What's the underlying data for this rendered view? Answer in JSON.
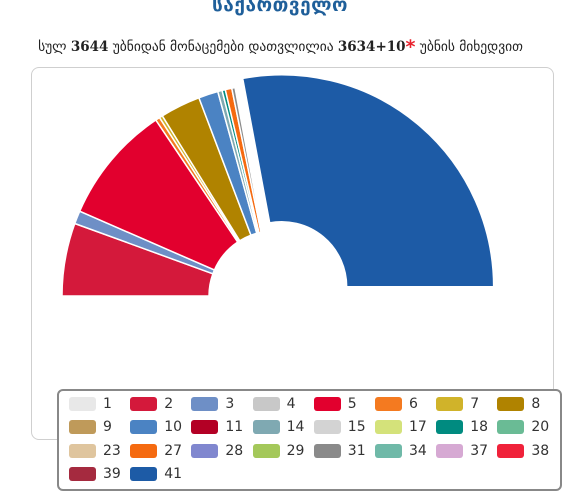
{
  "header": {
    "title": "საქართველო",
    "subtitle_prefix": "სულ",
    "subtitle_total": "3644",
    "subtitle_mid": "უბნიდან მონაცემები დათვლილია",
    "subtitle_counted": "3634+10",
    "subtitle_star": "*",
    "subtitle_suffix": "უბნის მიხედვით"
  },
  "chart_data": {
    "type": "pie",
    "variant": "semi-donut (parliament)",
    "categories": [
      "2",
      "3",
      "5",
      "6",
      "7",
      "8",
      "10",
      "14",
      "18",
      "27",
      "31",
      "41"
    ],
    "values": [
      6.7,
      1.2,
      10.9,
      0.4,
      0.3,
      3.7,
      1.8,
      0.4,
      0.3,
      0.6,
      0.3,
      33.7
    ],
    "exploded": [
      "41"
    ]
  },
  "legend": {
    "items": [
      {
        "label": "1",
        "color": "#e8e8e8"
      },
      {
        "label": "2",
        "color": "#d4193b"
      },
      {
        "label": "3",
        "color": "#6e8fc6"
      },
      {
        "label": "4",
        "color": "#c8c8c8"
      },
      {
        "label": "5",
        "color": "#e2002e"
      },
      {
        "label": "6",
        "color": "#f47a20"
      },
      {
        "label": "7",
        "color": "#d0b32a"
      },
      {
        "label": "8",
        "color": "#b08300"
      },
      {
        "label": "9",
        "color": "#bf9a5a"
      },
      {
        "label": "10",
        "color": "#4b83c3"
      },
      {
        "label": "11",
        "color": "#b30025"
      },
      {
        "label": "14",
        "color": "#7fa9b2"
      },
      {
        "label": "15",
        "color": "#d3d3d3"
      },
      {
        "label": "17",
        "color": "#d4e27a"
      },
      {
        "label": "18",
        "color": "#008b80"
      },
      {
        "label": "20",
        "color": "#6abb95"
      },
      {
        "label": "23",
        "color": "#dfc59e"
      },
      {
        "label": "27",
        "color": "#f56a10"
      },
      {
        "label": "28",
        "color": "#8087cf"
      },
      {
        "label": "29",
        "color": "#a4c85a"
      },
      {
        "label": "31",
        "color": "#8a8a8a"
      },
      {
        "label": "34",
        "color": "#6fb9a8"
      },
      {
        "label": "37",
        "color": "#d6a9d3"
      },
      {
        "label": "38",
        "color": "#f0223a"
      },
      {
        "label": "39",
        "color": "#a52a3f"
      },
      {
        "label": "41",
        "color": "#1d5ba6"
      }
    ]
  }
}
